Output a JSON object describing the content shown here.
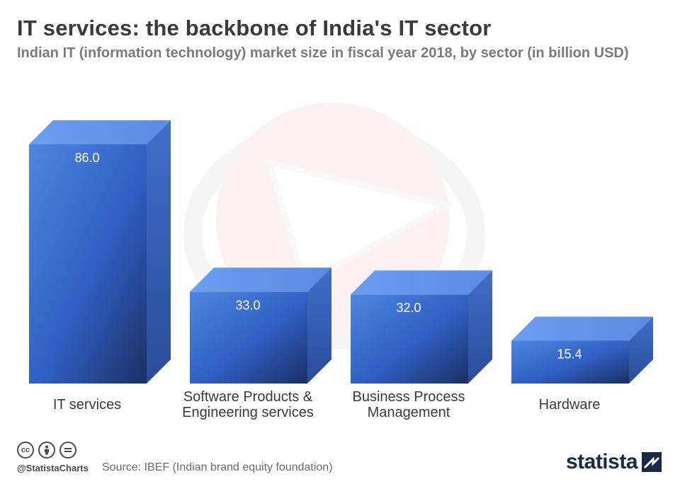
{
  "title": "IT services: the backbone of India's IT sector",
  "subtitle": "Indian IT (information technology) market size in fiscal year 2018, by sector (in billion USD)",
  "chart_data": {
    "type": "bar",
    "categories": [
      "IT services",
      "Software Products & Engineering services",
      "Business Process Management",
      "Hardware"
    ],
    "category_lines": [
      [
        "IT services"
      ],
      [
        "Software Products &",
        "Engineering services"
      ],
      [
        "Business Process",
        "Management"
      ],
      [
        "Hardware"
      ]
    ],
    "values": [
      86.0,
      33.0,
      32.0,
      15.4
    ],
    "value_labels": [
      "86.0",
      "33.0",
      "32.0",
      "15.4"
    ],
    "bar_color": "#3a6fd0"
  },
  "footer": {
    "cc_icons": [
      "cc-icon",
      "by-icon",
      "nd-icon"
    ],
    "handle": "@StatistaCharts",
    "source": "Source: IBEF (Indian brand equity foundation)",
    "brand": "statista"
  }
}
